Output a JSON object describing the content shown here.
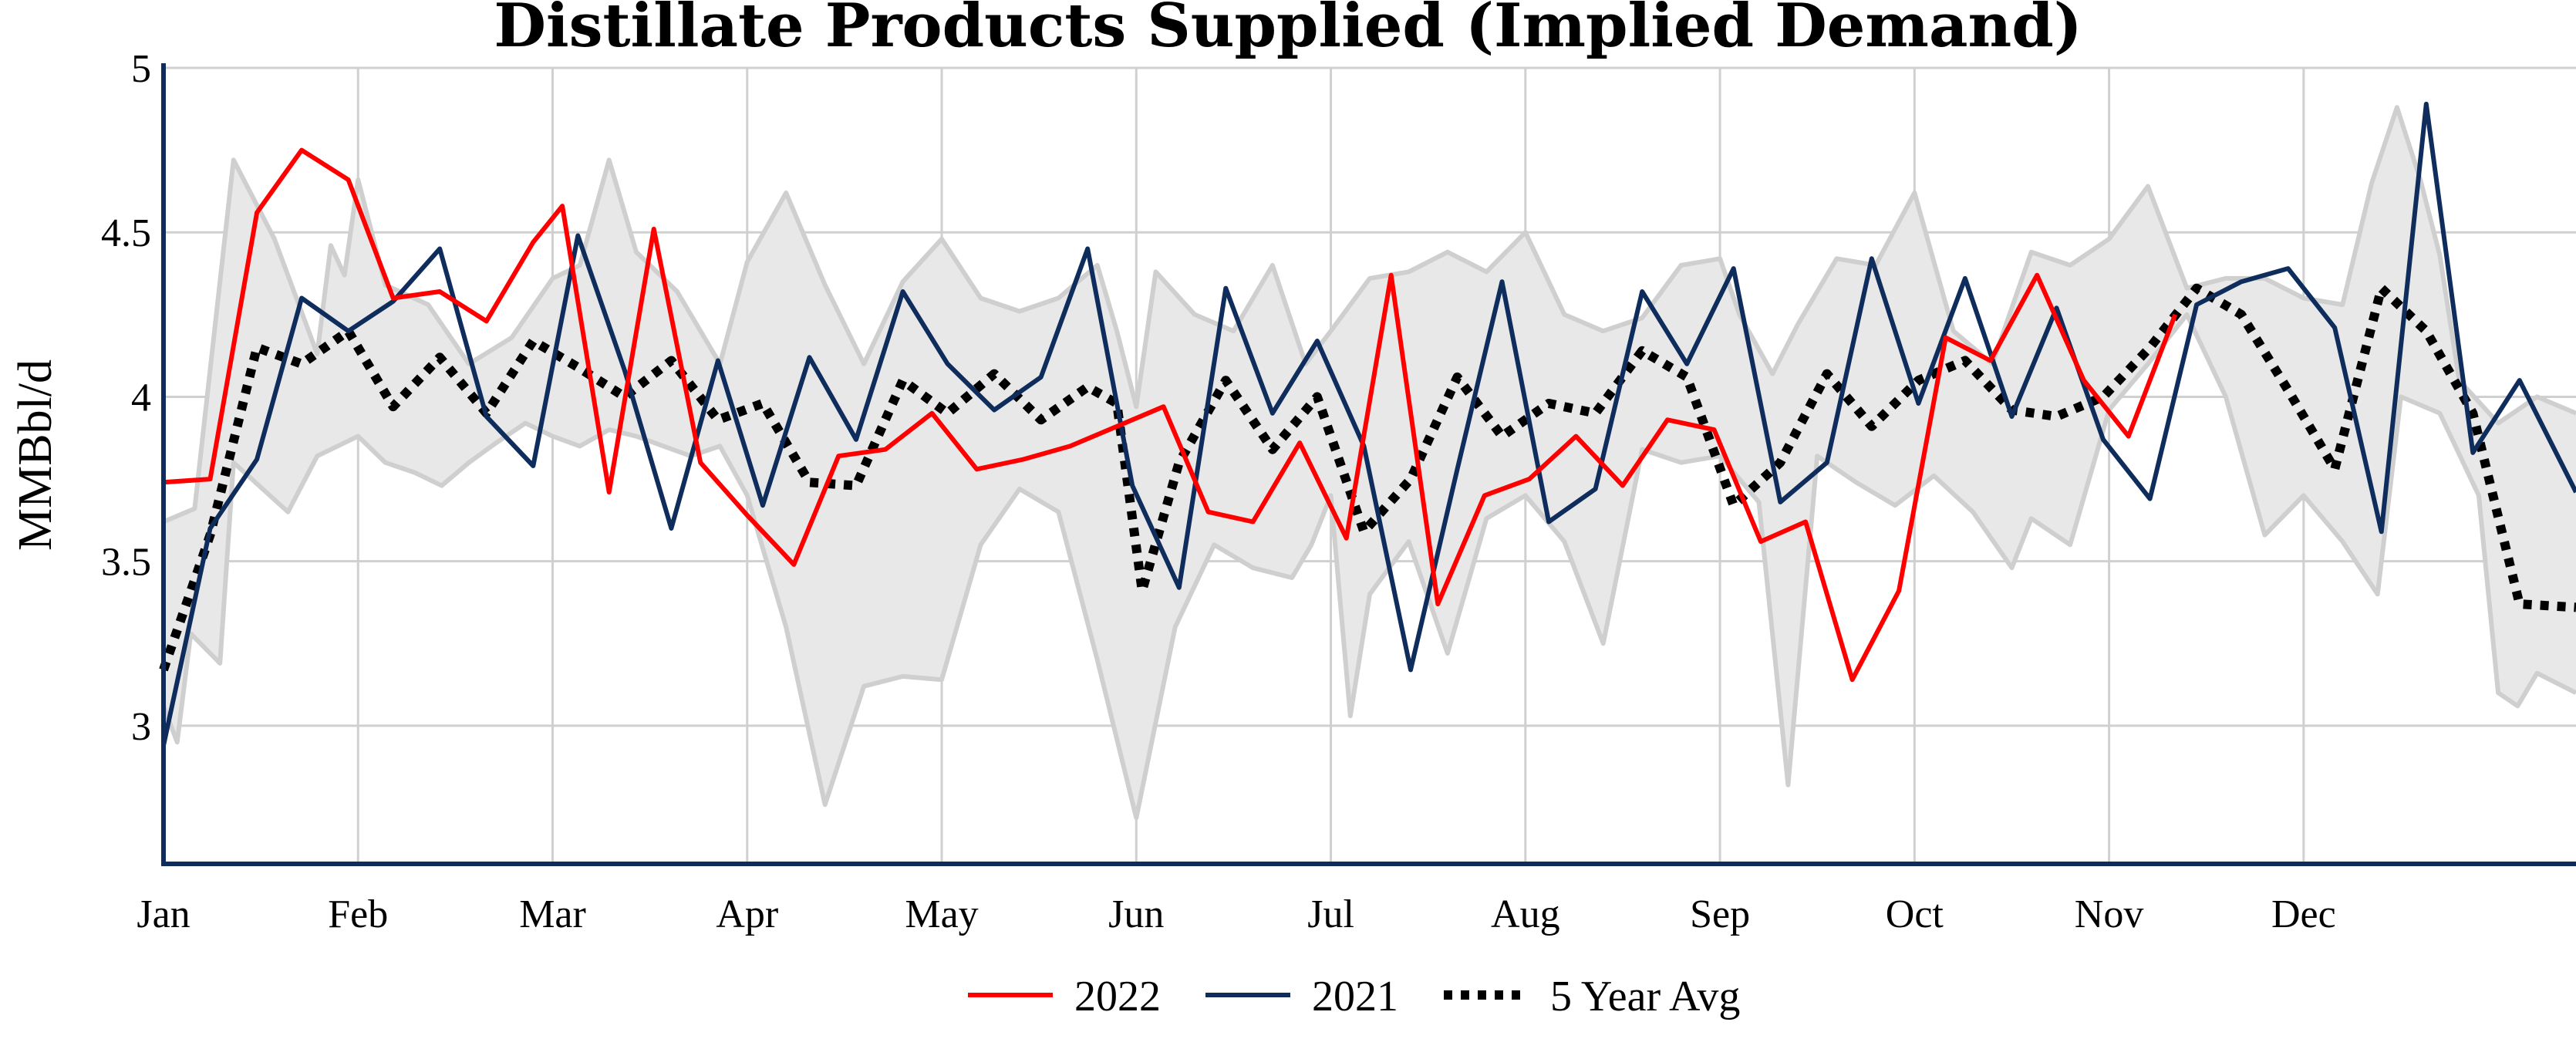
{
  "chart_data": {
    "type": "line",
    "title": "Distillate Products Supplied (Implied Demand)",
    "xlabel": "",
    "ylabel": "MMBbl/d",
    "x_unit": "month",
    "xlim": [
      0,
      12.4
    ],
    "ylim": [
      2.58,
      5.0
    ],
    "yticks": [
      3,
      3.5,
      4,
      4.5,
      5
    ],
    "ytick_labels": [
      "3",
      "3.5",
      "4",
      "4.5",
      "5"
    ],
    "xticks": [
      0,
      1,
      2,
      3,
      4,
      5,
      6,
      7,
      8,
      9,
      10,
      11
    ],
    "xtick_labels": [
      "Jan",
      "Feb",
      "Mar",
      "Apr",
      "May",
      "Jun",
      "Jul",
      "Aug",
      "Sep",
      "Oct",
      "Nov",
      "Dec"
    ],
    "grid": true,
    "legend_position": "bottom-center",
    "band": {
      "upper": [
        [
          0.0,
          3.62
        ],
        [
          0.16,
          3.66
        ],
        [
          0.36,
          4.72
        ],
        [
          0.57,
          4.48
        ],
        [
          0.79,
          4.13
        ],
        [
          0.86,
          4.46
        ],
        [
          0.93,
          4.37
        ],
        [
          1.0,
          4.66
        ],
        [
          1.14,
          4.34
        ],
        [
          1.36,
          4.28
        ],
        [
          1.57,
          4.1
        ],
        [
          1.79,
          4.18
        ],
        [
          2.0,
          4.36
        ],
        [
          2.14,
          4.4
        ],
        [
          2.29,
          4.72
        ],
        [
          2.43,
          4.44
        ],
        [
          2.64,
          4.32
        ],
        [
          2.86,
          4.1
        ],
        [
          3.0,
          4.41
        ],
        [
          3.2,
          4.62
        ],
        [
          3.4,
          4.34
        ],
        [
          3.6,
          4.1
        ],
        [
          3.8,
          4.35
        ],
        [
          4.0,
          4.48
        ],
        [
          4.2,
          4.3
        ],
        [
          4.4,
          4.26
        ],
        [
          4.6,
          4.3
        ],
        [
          4.8,
          4.4
        ],
        [
          4.9,
          4.2
        ],
        [
          5.0,
          3.97
        ],
        [
          5.1,
          4.38
        ],
        [
          5.3,
          4.25
        ],
        [
          5.5,
          4.2
        ],
        [
          5.7,
          4.4
        ],
        [
          5.87,
          4.1
        ],
        [
          6.0,
          4.2
        ],
        [
          6.2,
          4.36
        ],
        [
          6.4,
          4.38
        ],
        [
          6.6,
          4.44
        ],
        [
          6.8,
          4.38
        ],
        [
          7.0,
          4.5
        ],
        [
          7.2,
          4.25
        ],
        [
          7.4,
          4.2
        ],
        [
          7.6,
          4.24
        ],
        [
          7.8,
          4.4
        ],
        [
          8.0,
          4.42
        ],
        [
          8.1,
          4.25
        ],
        [
          8.27,
          4.07
        ],
        [
          8.4,
          4.22
        ],
        [
          8.6,
          4.42
        ],
        [
          8.8,
          4.4
        ],
        [
          9.0,
          4.62
        ],
        [
          9.2,
          4.2
        ],
        [
          9.4,
          4.1
        ],
        [
          9.6,
          4.44
        ],
        [
          9.8,
          4.4
        ],
        [
          10.0,
          4.48
        ],
        [
          10.2,
          4.64
        ],
        [
          10.4,
          4.33
        ],
        [
          10.6,
          4.36
        ],
        [
          10.8,
          4.36
        ],
        [
          11.0,
          4.3
        ],
        [
          11.2,
          4.28
        ],
        [
          11.35,
          4.65
        ],
        [
          11.48,
          4.88
        ],
        [
          11.6,
          4.66
        ],
        [
          11.7,
          4.43
        ],
        [
          11.8,
          4.05
        ],
        [
          12.0,
          3.92
        ],
        [
          12.2,
          4.0
        ],
        [
          12.4,
          3.95
        ]
      ],
      "lower": [
        [
          0.0,
          3.06
        ],
        [
          0.07,
          2.95
        ],
        [
          0.14,
          3.28
        ],
        [
          0.29,
          3.19
        ],
        [
          0.36,
          3.8
        ],
        [
          0.64,
          3.65
        ],
        [
          0.79,
          3.82
        ],
        [
          1.0,
          3.88
        ],
        [
          1.14,
          3.8
        ],
        [
          1.29,
          3.77
        ],
        [
          1.43,
          3.73
        ],
        [
          1.57,
          3.8
        ],
        [
          1.71,
          3.86
        ],
        [
          1.86,
          3.92
        ],
        [
          2.0,
          3.88
        ],
        [
          2.14,
          3.85
        ],
        [
          2.29,
          3.9
        ],
        [
          2.43,
          3.88
        ],
        [
          2.57,
          3.85
        ],
        [
          2.71,
          3.82
        ],
        [
          2.86,
          3.85
        ],
        [
          3.0,
          3.7
        ],
        [
          3.2,
          3.3
        ],
        [
          3.4,
          2.76
        ],
        [
          3.6,
          3.12
        ],
        [
          3.8,
          3.15
        ],
        [
          4.0,
          3.14
        ],
        [
          4.2,
          3.55
        ],
        [
          4.4,
          3.72
        ],
        [
          4.6,
          3.65
        ],
        [
          4.8,
          3.2
        ],
        [
          5.0,
          2.72
        ],
        [
          5.2,
          3.3
        ],
        [
          5.4,
          3.55
        ],
        [
          5.6,
          3.48
        ],
        [
          5.8,
          3.45
        ],
        [
          5.9,
          3.55
        ],
        [
          6.0,
          3.7
        ],
        [
          6.1,
          3.03
        ],
        [
          6.2,
          3.4
        ],
        [
          6.4,
          3.56
        ],
        [
          6.6,
          3.22
        ],
        [
          6.8,
          3.63
        ],
        [
          7.0,
          3.7
        ],
        [
          7.2,
          3.56
        ],
        [
          7.4,
          3.25
        ],
        [
          7.6,
          3.84
        ],
        [
          7.8,
          3.8
        ],
        [
          8.0,
          3.82
        ],
        [
          8.2,
          3.68
        ],
        [
          8.35,
          2.82
        ],
        [
          8.5,
          3.82
        ],
        [
          8.7,
          3.74
        ],
        [
          8.9,
          3.67
        ],
        [
          9.1,
          3.76
        ],
        [
          9.3,
          3.65
        ],
        [
          9.5,
          3.48
        ],
        [
          9.6,
          3.63
        ],
        [
          9.8,
          3.55
        ],
        [
          10.0,
          3.96
        ],
        [
          10.2,
          4.1
        ],
        [
          10.4,
          4.25
        ],
        [
          10.6,
          4.0
        ],
        [
          10.8,
          3.58
        ],
        [
          11.0,
          3.7
        ],
        [
          11.2,
          3.56
        ],
        [
          11.38,
          3.4
        ],
        [
          11.5,
          4.0
        ],
        [
          11.7,
          3.95
        ],
        [
          11.9,
          3.7
        ],
        [
          12.0,
          3.1
        ],
        [
          12.1,
          3.06
        ],
        [
          12.2,
          3.16
        ],
        [
          12.4,
          3.1
        ]
      ]
    },
    "series": [
      {
        "name": "2022",
        "color": "#ff0000",
        "style": "solid",
        "points": [
          [
            0.0,
            3.74
          ],
          [
            0.24,
            3.75
          ],
          [
            0.48,
            4.56
          ],
          [
            0.71,
            4.75
          ],
          [
            0.95,
            4.66
          ],
          [
            1.18,
            4.3
          ],
          [
            1.42,
            4.32
          ],
          [
            1.66,
            4.23
          ],
          [
            1.9,
            4.47
          ],
          [
            2.05,
            4.58
          ],
          [
            2.29,
            3.71
          ],
          [
            2.52,
            4.51
          ],
          [
            2.76,
            3.8
          ],
          [
            3.0,
            3.64
          ],
          [
            3.24,
            3.49
          ],
          [
            3.47,
            3.82
          ],
          [
            3.71,
            3.84
          ],
          [
            3.95,
            3.95
          ],
          [
            4.18,
            3.78
          ],
          [
            4.42,
            3.81
          ],
          [
            4.66,
            3.85
          ],
          [
            4.9,
            3.91
          ],
          [
            5.14,
            3.97
          ],
          [
            5.37,
            3.65
          ],
          [
            5.6,
            3.62
          ],
          [
            5.84,
            3.86
          ],
          [
            6.08,
            3.57
          ],
          [
            6.31,
            4.37
          ],
          [
            6.55,
            3.37
          ],
          [
            6.79,
            3.7
          ],
          [
            7.02,
            3.75
          ],
          [
            7.26,
            3.88
          ],
          [
            7.5,
            3.73
          ],
          [
            7.73,
            3.93
          ],
          [
            7.97,
            3.9
          ],
          [
            8.21,
            3.56
          ],
          [
            8.44,
            3.62
          ],
          [
            8.68,
            3.14
          ],
          [
            8.92,
            3.41
          ],
          [
            9.16,
            4.18
          ],
          [
            9.39,
            4.11
          ],
          [
            9.63,
            4.37
          ],
          [
            9.87,
            4.05
          ],
          [
            10.1,
            3.88
          ],
          [
            10.34,
            4.25
          ]
        ]
      },
      {
        "name": "2021",
        "color": "#0f2d5c",
        "style": "solid",
        "points": [
          [
            0.0,
            2.94
          ],
          [
            0.24,
            3.6
          ],
          [
            0.48,
            3.81
          ],
          [
            0.71,
            4.3
          ],
          [
            0.95,
            4.2
          ],
          [
            1.18,
            4.29
          ],
          [
            1.42,
            4.45
          ],
          [
            1.66,
            3.94
          ],
          [
            1.9,
            3.79
          ],
          [
            2.13,
            4.49
          ],
          [
            2.37,
            4.08
          ],
          [
            2.61,
            3.6
          ],
          [
            2.85,
            4.11
          ],
          [
            3.08,
            3.67
          ],
          [
            3.32,
            4.12
          ],
          [
            3.56,
            3.87
          ],
          [
            3.8,
            4.32
          ],
          [
            4.03,
            4.1
          ],
          [
            4.27,
            3.96
          ],
          [
            4.51,
            4.06
          ],
          [
            4.75,
            4.45
          ],
          [
            4.98,
            3.73
          ],
          [
            5.22,
            3.42
          ],
          [
            5.46,
            4.33
          ],
          [
            5.7,
            3.95
          ],
          [
            5.93,
            4.17
          ],
          [
            6.17,
            3.85
          ],
          [
            6.41,
            3.17
          ],
          [
            6.65,
            3.78
          ],
          [
            6.88,
            4.35
          ],
          [
            7.12,
            3.62
          ],
          [
            7.36,
            3.72
          ],
          [
            7.6,
            4.32
          ],
          [
            7.83,
            4.1
          ],
          [
            8.07,
            4.39
          ],
          [
            8.31,
            3.68
          ],
          [
            8.55,
            3.8
          ],
          [
            8.78,
            4.42
          ],
          [
            9.02,
            3.98
          ],
          [
            9.26,
            4.36
          ],
          [
            9.5,
            3.94
          ],
          [
            9.73,
            4.27
          ],
          [
            9.97,
            3.87
          ],
          [
            10.21,
            3.69
          ],
          [
            10.45,
            4.28
          ],
          [
            10.68,
            4.35
          ],
          [
            10.92,
            4.39
          ],
          [
            11.16,
            4.21
          ],
          [
            11.4,
            3.59
          ],
          [
            11.63,
            4.89
          ],
          [
            11.87,
            3.83
          ],
          [
            12.11,
            4.05
          ],
          [
            12.4,
            3.71
          ]
        ]
      },
      {
        "name": "5 Year Avg",
        "color": "#000000",
        "style": "dotted",
        "points": [
          [
            0.0,
            3.17
          ],
          [
            0.24,
            3.58
          ],
          [
            0.48,
            4.15
          ],
          [
            0.71,
            4.1
          ],
          [
            0.95,
            4.2
          ],
          [
            1.18,
            3.97
          ],
          [
            1.42,
            4.12
          ],
          [
            1.66,
            3.95
          ],
          [
            1.9,
            4.17
          ],
          [
            2.13,
            4.09
          ],
          [
            2.37,
            4.0
          ],
          [
            2.61,
            4.11
          ],
          [
            2.85,
            3.93
          ],
          [
            3.08,
            3.98
          ],
          [
            3.32,
            3.74
          ],
          [
            3.56,
            3.73
          ],
          [
            3.8,
            4.05
          ],
          [
            4.03,
            3.95
          ],
          [
            4.27,
            4.07
          ],
          [
            4.51,
            3.93
          ],
          [
            4.75,
            4.03
          ],
          [
            4.9,
            3.98
          ],
          [
            5.03,
            3.41
          ],
          [
            5.22,
            3.8
          ],
          [
            5.46,
            4.05
          ],
          [
            5.7,
            3.84
          ],
          [
            5.93,
            4.0
          ],
          [
            6.17,
            3.59
          ],
          [
            6.41,
            3.75
          ],
          [
            6.65,
            4.06
          ],
          [
            6.88,
            3.88
          ],
          [
            7.12,
            3.98
          ],
          [
            7.36,
            3.95
          ],
          [
            7.6,
            4.14
          ],
          [
            7.83,
            4.06
          ],
          [
            8.07,
            3.67
          ],
          [
            8.31,
            3.8
          ],
          [
            8.55,
            4.07
          ],
          [
            8.78,
            3.91
          ],
          [
            9.02,
            4.05
          ],
          [
            9.26,
            4.11
          ],
          [
            9.5,
            3.96
          ],
          [
            9.73,
            3.94
          ],
          [
            9.97,
            4.0
          ],
          [
            10.21,
            4.15
          ],
          [
            10.45,
            4.33
          ],
          [
            10.68,
            4.25
          ],
          [
            10.92,
            4.02
          ],
          [
            11.16,
            3.78
          ],
          [
            11.4,
            4.33
          ],
          [
            11.63,
            4.2
          ],
          [
            11.87,
            3.95
          ],
          [
            12.11,
            3.37
          ],
          [
            12.4,
            3.36
          ]
        ]
      }
    ]
  }
}
